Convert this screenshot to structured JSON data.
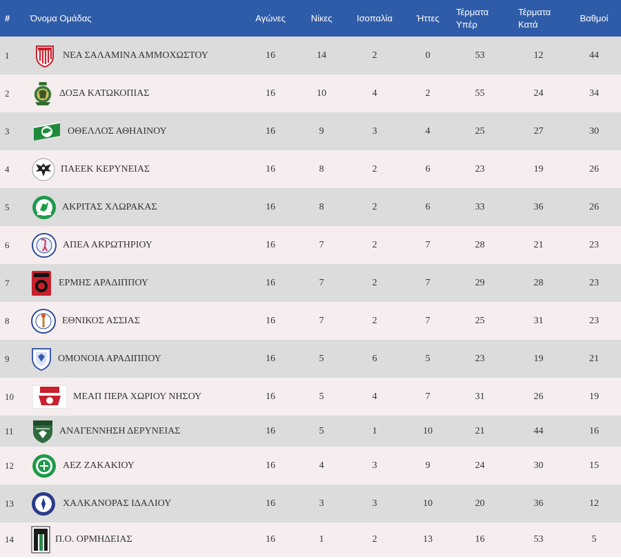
{
  "headers": {
    "rank": "#",
    "team": "Όνομα Ομάδας",
    "played": "Αγώνες",
    "wins": "Νίκες",
    "draws": "Ισοπαλία",
    "losses": "Ήττες",
    "goals_for": [
      "Τέρματα",
      "Υπέρ"
    ],
    "goals_against": [
      "Τέρματα",
      "Κατά"
    ],
    "points": "Βαθμοί"
  },
  "rows": [
    {
      "rank": "1",
      "team": "ΝΕΑ ΣΑΛΑΜΙΝΑ ΑΜΜΟΧΩΣΤΟΥ",
      "played": "16",
      "wins": "14",
      "draws": "2",
      "losses": "0",
      "gf": "53",
      "ga": "12",
      "pts": "44",
      "logo": "nea-salamina-logo-icon"
    },
    {
      "rank": "2",
      "team": "ΔΟΞΑ ΚΑΤΩΚΟΠΙΑΣ",
      "played": "16",
      "wins": "10",
      "draws": "4",
      "losses": "2",
      "gf": "55",
      "ga": "24",
      "pts": "34",
      "logo": "doxa-logo-icon"
    },
    {
      "rank": "3",
      "team": "ΟΘΕΛΛΟΣ ΑΘΗΑΙΝΟΥ",
      "played": "16",
      "wins": "9",
      "draws": "3",
      "losses": "4",
      "gf": "25",
      "ga": "27",
      "pts": "30",
      "logo": "othellos-logo-icon"
    },
    {
      "rank": "4",
      "team": "ΠΑΕΕΚ ΚΕΡΥΝΕΙΑΣ",
      "played": "16",
      "wins": "8",
      "draws": "2",
      "losses": "6",
      "gf": "23",
      "ga": "19",
      "pts": "26",
      "logo": "paeek-logo-icon"
    },
    {
      "rank": "5",
      "team": "ΑΚΡΙΤΑΣ ΧΛΩΡΑΚΑΣ",
      "played": "16",
      "wins": "8",
      "draws": "2",
      "losses": "6",
      "gf": "33",
      "ga": "36",
      "pts": "26",
      "logo": "akritas-logo-icon"
    },
    {
      "rank": "6",
      "team": "ΑΠΕΑ ΑΚΡΩΤΗΡΙΟΥ",
      "played": "16",
      "wins": "7",
      "draws": "2",
      "losses": "7",
      "gf": "28",
      "ga": "21",
      "pts": "23",
      "logo": "apea-logo-icon"
    },
    {
      "rank": "7",
      "team": "ΕΡΜΗΣ ΑΡΑΔΙΠΠΟΥ",
      "played": "16",
      "wins": "7",
      "draws": "2",
      "losses": "7",
      "gf": "29",
      "ga": "28",
      "pts": "23",
      "logo": "ermis-logo-icon"
    },
    {
      "rank": "8",
      "team": "ΕΘΝΙΚΟΣ ΑΣΣΙΑΣ",
      "played": "16",
      "wins": "7",
      "draws": "2",
      "losses": "7",
      "gf": "25",
      "ga": "31",
      "pts": "23",
      "logo": "ethnikos-logo-icon"
    },
    {
      "rank": "9",
      "team": "ΟΜΟΝΟΙΑ ΑΡΑΔΙΠΠΟΥ",
      "played": "16",
      "wins": "5",
      "draws": "6",
      "losses": "5",
      "gf": "23",
      "ga": "19",
      "pts": "21",
      "logo": "omonoia-logo-icon"
    },
    {
      "rank": "10",
      "team": "ΜΕΑΠ ΠΕΡΑ ΧΩΡΙΟΥ ΝΗΣΟΥ",
      "played": "16",
      "wins": "5",
      "draws": "4",
      "losses": "7",
      "gf": "31",
      "ga": "26",
      "pts": "19",
      "logo": "meap-logo-icon"
    },
    {
      "rank": "11",
      "team": "ΑΝΑΓΕΝΝΗΣΗ ΔΕΡΥΝΕΙΑΣ",
      "played": "16",
      "wins": "5",
      "draws": "1",
      "losses": "10",
      "gf": "21",
      "ga": "44",
      "pts": "16",
      "logo": "anagennisi-logo-icon"
    },
    {
      "rank": "12",
      "team": "ΑΕΖ ΖΑΚΑΚΙΟΥ",
      "played": "16",
      "wins": "4",
      "draws": "3",
      "losses": "9",
      "gf": "24",
      "ga": "30",
      "pts": "15",
      "logo": "aez-logo-icon"
    },
    {
      "rank": "13",
      "team": "ΧΑΛΚΑΝΟΡΑΣ ΙΔΑΛΙΟΥ",
      "played": "16",
      "wins": "3",
      "draws": "3",
      "losses": "10",
      "gf": "20",
      "ga": "36",
      "pts": "12",
      "logo": "chalkanoras-logo-icon"
    },
    {
      "rank": "14",
      "team": "Π.Ο. ΟΡΜΗΔΕΙΑΣ",
      "played": "16",
      "wins": "1",
      "draws": "2",
      "losses": "13",
      "gf": "16",
      "ga": "53",
      "pts": "5",
      "logo": "ormideia-logo-icon"
    }
  ],
  "colors": {
    "header_bg": "#2f5ca8",
    "row_odd": "#dcdcdc",
    "row_even": "#f6eeee"
  }
}
